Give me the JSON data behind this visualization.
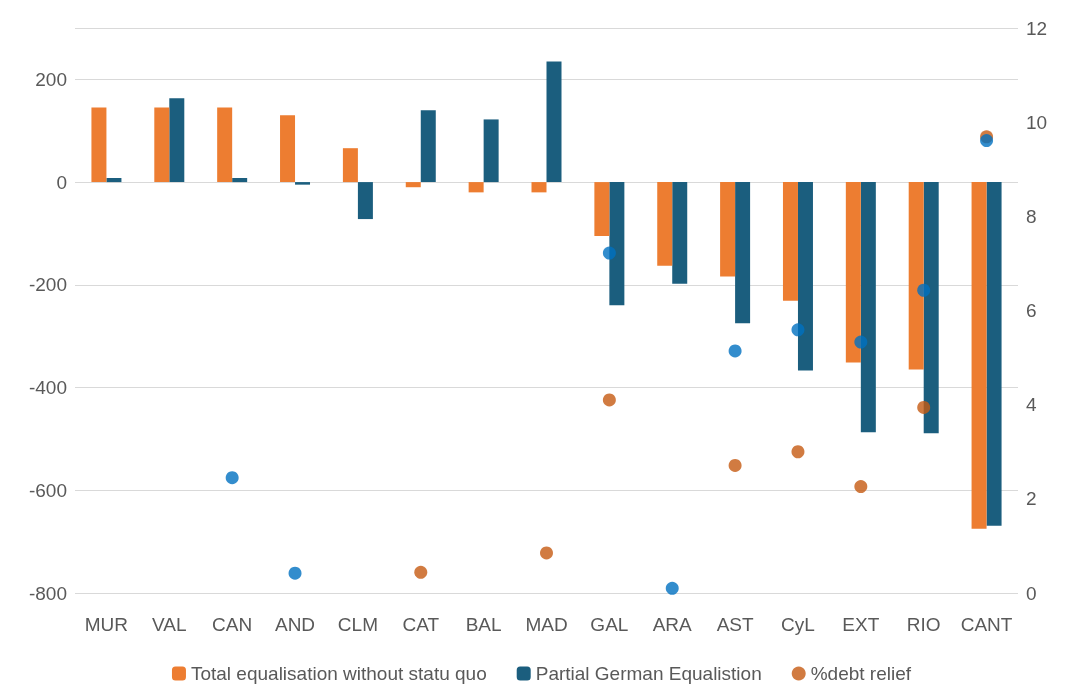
{
  "chart_data": {
    "type": "bar",
    "categories": [
      "MUR",
      "VAL",
      "CAN",
      "AND",
      "CLM",
      "CAT",
      "BAL",
      "MAD",
      "GAL",
      "ARA",
      "AST",
      "CyL",
      "EXT",
      "RIO",
      "CANT"
    ],
    "series": [
      {
        "name": "Total equalisation without statu quo",
        "color": "#ed7d31",
        "values": [
          145,
          145,
          145,
          130,
          66,
          -10,
          -20,
          -20,
          -105,
          -163,
          -184,
          -231,
          -351,
          -365,
          -675
        ]
      },
      {
        "name": "Partial German Equalistion",
        "color": "#1b5e7e",
        "values": [
          8,
          163,
          8,
          -5,
          -72,
          140,
          122,
          235,
          -240,
          -198,
          -275,
          -367,
          -487,
          -489,
          -669
        ]
      },
      {
        "type": "scatter",
        "axis": "y2",
        "color": "#0070c0",
        "values": [
          null,
          null,
          2.45,
          0.42,
          null,
          null,
          null,
          null,
          7.22,
          0.1,
          5.14,
          5.59,
          5.33,
          6.43,
          9.61
        ]
      },
      {
        "name": "%debt relief",
        "type": "scatter",
        "axis": "y2",
        "color": "#c55a11",
        "values": [
          null,
          null,
          null,
          null,
          null,
          0.44,
          null,
          0.85,
          4.1,
          null,
          2.71,
          3.0,
          2.26,
          3.94,
          9.69
        ]
      }
    ],
    "ylim": [
      -800,
      300
    ],
    "yticks": [
      -800,
      -600,
      -400,
      -200,
      0,
      200,
      {
        "value": 300,
        "label": null
      }
    ],
    "y2lim": [
      0,
      12
    ],
    "y2ticks": [
      0,
      2,
      4,
      6,
      8,
      10,
      12
    ],
    "grid": "y",
    "legend": "bottom",
    "marker": "circle"
  }
}
